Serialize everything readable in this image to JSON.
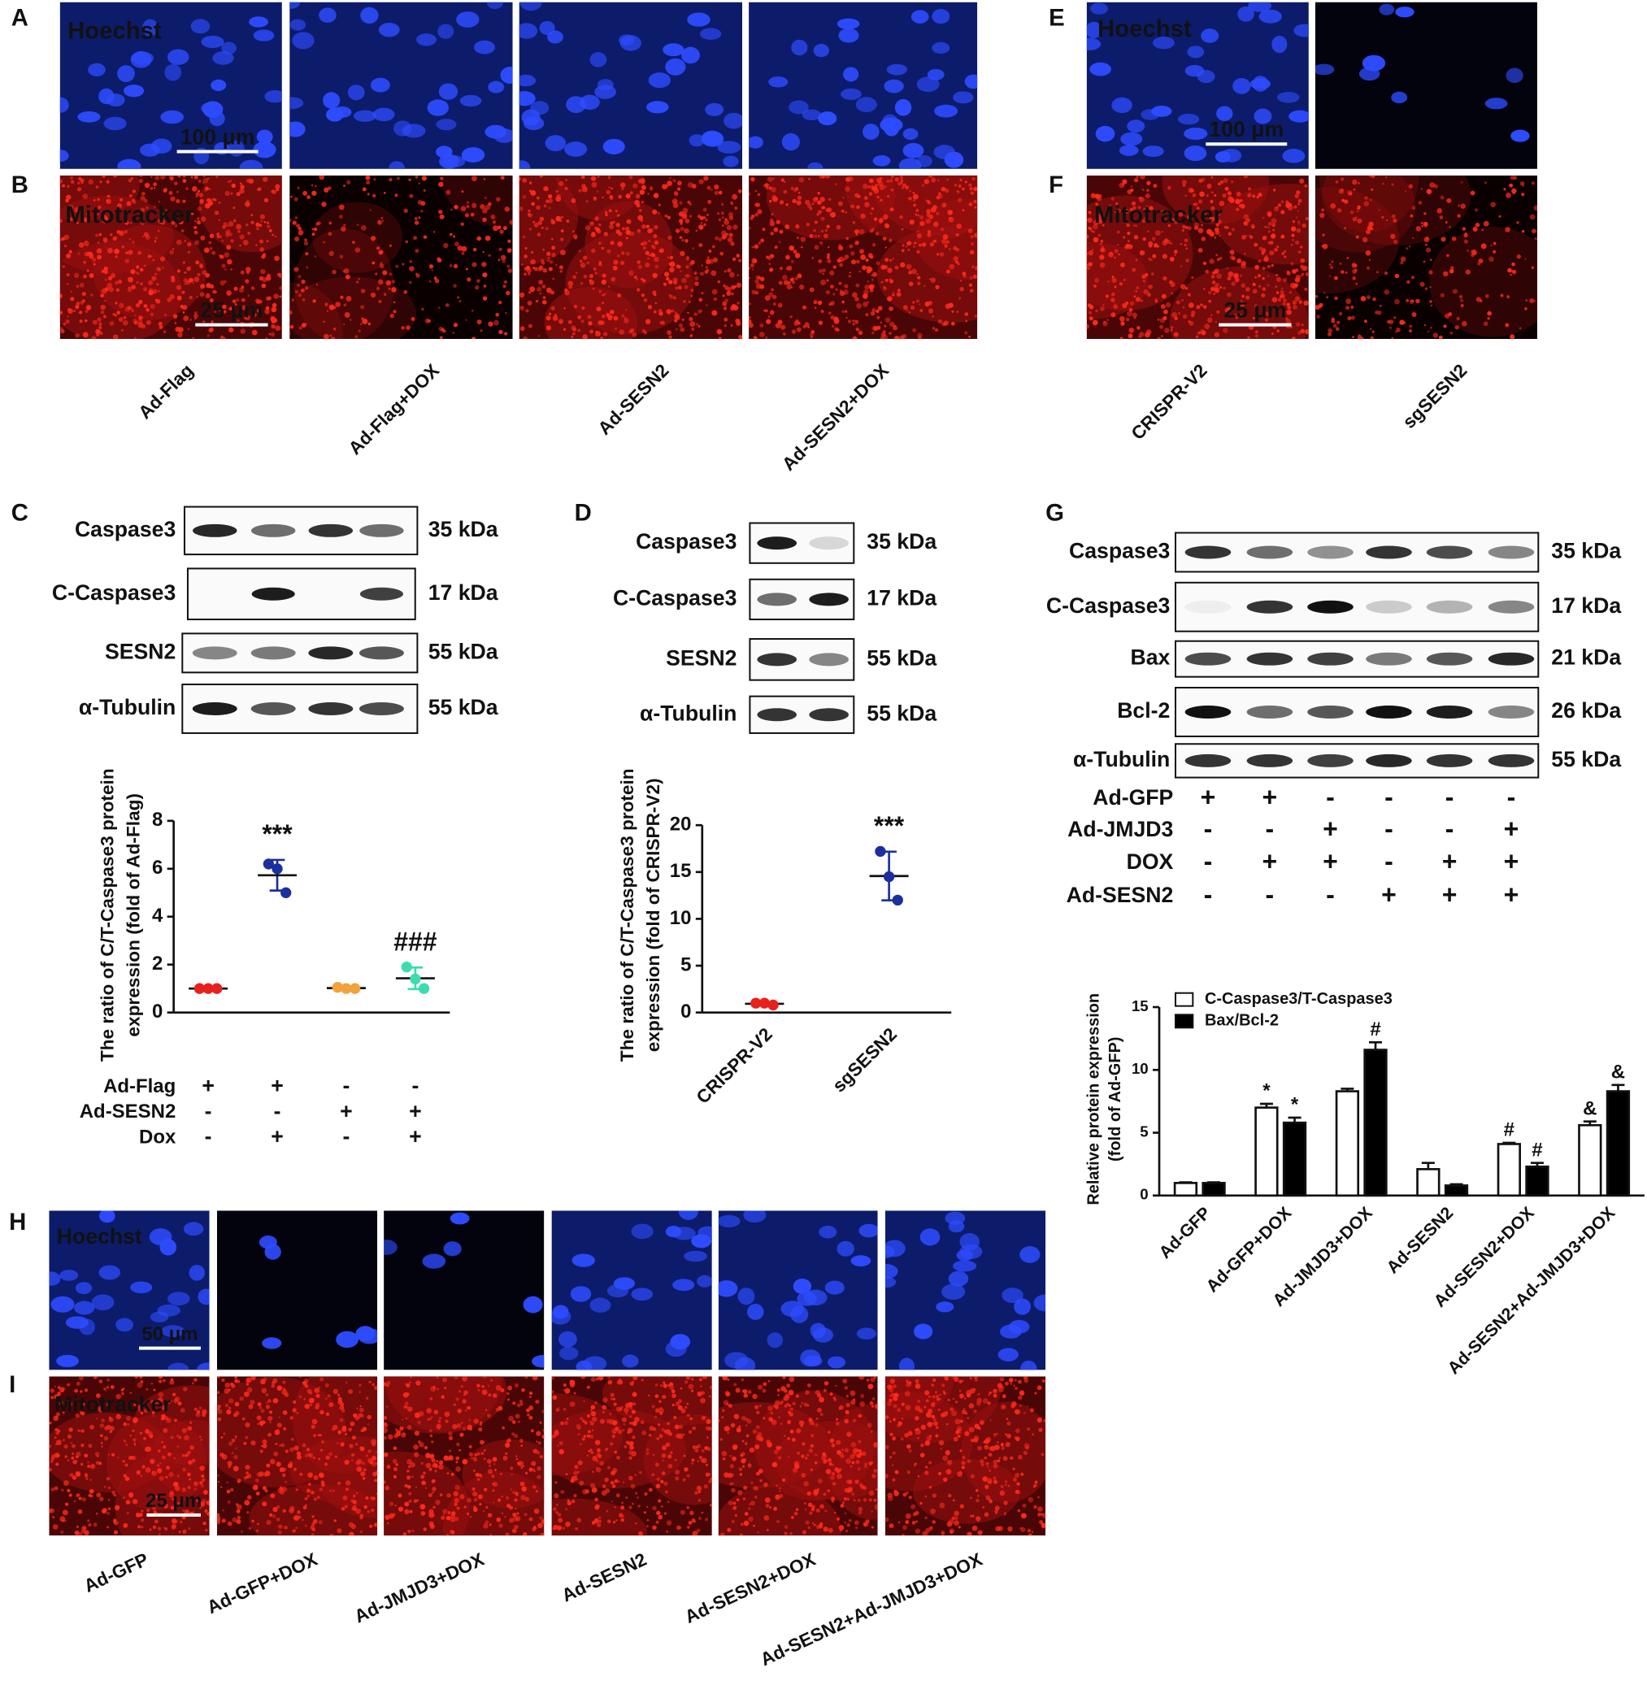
{
  "panels": {
    "panel_ab": {
      "letters": [
        "A",
        "B"
      ],
      "stains": [
        "Hoechst",
        "Mitotracker"
      ],
      "scale_bars": [
        "100 μm",
        "25 μm"
      ],
      "conditions": [
        "Ad-Flag",
        "Ad-Flag+DOX",
        "Ad-SESN2",
        "Ad-SESN2+DOX"
      ]
    },
    "panel_ef": {
      "letters": [
        "E",
        "F"
      ],
      "stains": [
        "Hoechst",
        "Mitotracker"
      ],
      "scale_bars": [
        "100 μm",
        "25 μm"
      ],
      "conditions": [
        "CRISPR-V2",
        "sgSESN2"
      ]
    },
    "panel_hi": {
      "letters": [
        "H",
        "I"
      ],
      "stains": [
        "Hoechst",
        "Mitotracker"
      ],
      "scale_bars": [
        "50 μm",
        "25 μm"
      ],
      "conditions": [
        "Ad-GFP",
        "Ad-GFP+DOX",
        "Ad-JMJD3+DOX",
        "Ad-SESN2",
        "Ad-SESN2+DOX",
        "Ad-SESN2+Ad-JMJD3+DOX"
      ]
    }
  },
  "blots": [
    {
      "letter": "C",
      "rows": [
        {
          "protein": "Caspase3",
          "size": "35 kDa"
        },
        {
          "protein": "C-Caspase3",
          "size": "17 kDa"
        },
        {
          "protein": "SESN2",
          "size": "55 kDa"
        },
        {
          "protein": "α-Tubulin",
          "size": "55 kDa"
        }
      ]
    },
    {
      "letter": "D",
      "rows": [
        {
          "protein": "Caspase3",
          "size": "35 kDa"
        },
        {
          "protein": "C-Caspase3",
          "size": "17 kDa"
        },
        {
          "protein": "SESN2",
          "size": "55 kDa"
        },
        {
          "protein": "α-Tubulin",
          "size": "55 kDa"
        }
      ]
    },
    {
      "letter": "G",
      "rows": [
        {
          "protein": "Caspase3",
          "size": "35 kDa"
        },
        {
          "protein": "C-Caspase3",
          "size": "17 kDa"
        },
        {
          "protein": "Bax",
          "size": "21 kDa"
        },
        {
          "protein": "Bcl-2",
          "size": "26 kDa"
        },
        {
          "protein": "α-Tubulin",
          "size": "55 kDa"
        }
      ],
      "treatments": [
        {
          "name": "Ad-GFP",
          "signs": [
            "+",
            "+",
            "-",
            "-",
            "-",
            "-"
          ]
        },
        {
          "name": "Ad-JMJD3",
          "signs": [
            "-",
            "-",
            "+",
            "-",
            "-",
            "+"
          ]
        },
        {
          "name": "DOX",
          "signs": [
            "-",
            "+",
            "+",
            "-",
            "+",
            "+"
          ]
        },
        {
          "name": "Ad-SESN2",
          "signs": [
            "-",
            "-",
            "-",
            "+",
            "+",
            "+"
          ]
        }
      ]
    }
  ],
  "chart_data": [
    {
      "type": "dot_plot",
      "ylabel": [
        "The ratio of C/T-Caspase3 protein",
        "expression (fold of Ad-Flag)"
      ],
      "ylim": [
        0,
        8
      ],
      "yticks": [
        0,
        2,
        4,
        6,
        8
      ],
      "groups": [
        {
          "color": "#e8211d",
          "points": [
            1.0,
            1.0,
            1.0
          ],
          "mean": 1.0,
          "sd": 0.02
        },
        {
          "color": "#1b2f9e",
          "points": [
            6.2,
            6.0,
            5.0
          ],
          "mean": 5.73,
          "sd": 0.64,
          "annotation": "***"
        },
        {
          "color": "#f2a23a",
          "points": [
            1.05,
            1.0,
            1.0
          ],
          "mean": 1.02,
          "sd": 0.03
        },
        {
          "color": "#3ddcb0",
          "points": [
            1.9,
            1.4,
            1.0
          ],
          "mean": 1.43,
          "sd": 0.45,
          "annotation": "###"
        }
      ],
      "conditions": [
        {
          "name": "Ad-Flag",
          "signs": [
            "+",
            "+",
            "-",
            "-"
          ]
        },
        {
          "name": "Ad-SESN2",
          "signs": [
            "-",
            "-",
            "+",
            "+"
          ]
        },
        {
          "name": "Dox",
          "signs": [
            "-",
            "+",
            "-",
            "+"
          ]
        }
      ]
    },
    {
      "type": "dot_plot",
      "ylabel": [
        "The ratio of C/T-Caspase3 protein",
        "expression (fold of CRISPR-V2)"
      ],
      "ylim": [
        0,
        20
      ],
      "yticks": [
        0,
        5,
        10,
        15,
        20
      ],
      "categories": [
        "CRISPR-V2",
        "sgSESN2"
      ],
      "groups": [
        {
          "color": "#e8211d",
          "points": [
            1.0,
            1.0,
            0.8
          ],
          "mean": 0.93,
          "sd": 0.1
        },
        {
          "color": "#1b2f9e",
          "points": [
            17.2,
            14.5,
            12.0
          ],
          "mean": 14.57,
          "sd": 2.6,
          "annotation": "***"
        }
      ]
    },
    {
      "type": "bar",
      "ylabel": [
        "Relative protein expression",
        "(fold of Ad-GFP)"
      ],
      "ylim": [
        0,
        15
      ],
      "yticks": [
        0,
        5,
        10,
        15
      ],
      "categories": [
        "Ad-GFP",
        "Ad-GFP+DOX",
        "Ad-JMJD3+DOX",
        "Ad-SESN2",
        "Ad-SESN2+DOX",
        "Ad-SESN2+Ad-JMJD3+DOX"
      ],
      "series": [
        {
          "name": "C-Caspase3/T-Caspase3",
          "color": "#ffffff",
          "values": [
            1.0,
            7.0,
            8.3,
            2.1,
            4.1,
            5.6
          ],
          "errors": [
            0.05,
            0.3,
            0.2,
            0.5,
            0.1,
            0.3
          ],
          "annotations": [
            null,
            "*",
            null,
            null,
            "#",
            "&"
          ]
        },
        {
          "name": "Bax/Bcl-2",
          "color": "#000000",
          "values": [
            1.0,
            5.8,
            11.6,
            0.8,
            2.3,
            8.3
          ],
          "errors": [
            0.05,
            0.4,
            0.6,
            0.1,
            0.3,
            0.5
          ],
          "annotations": [
            null,
            "*",
            "#",
            null,
            "#",
            "&"
          ]
        }
      ]
    }
  ]
}
